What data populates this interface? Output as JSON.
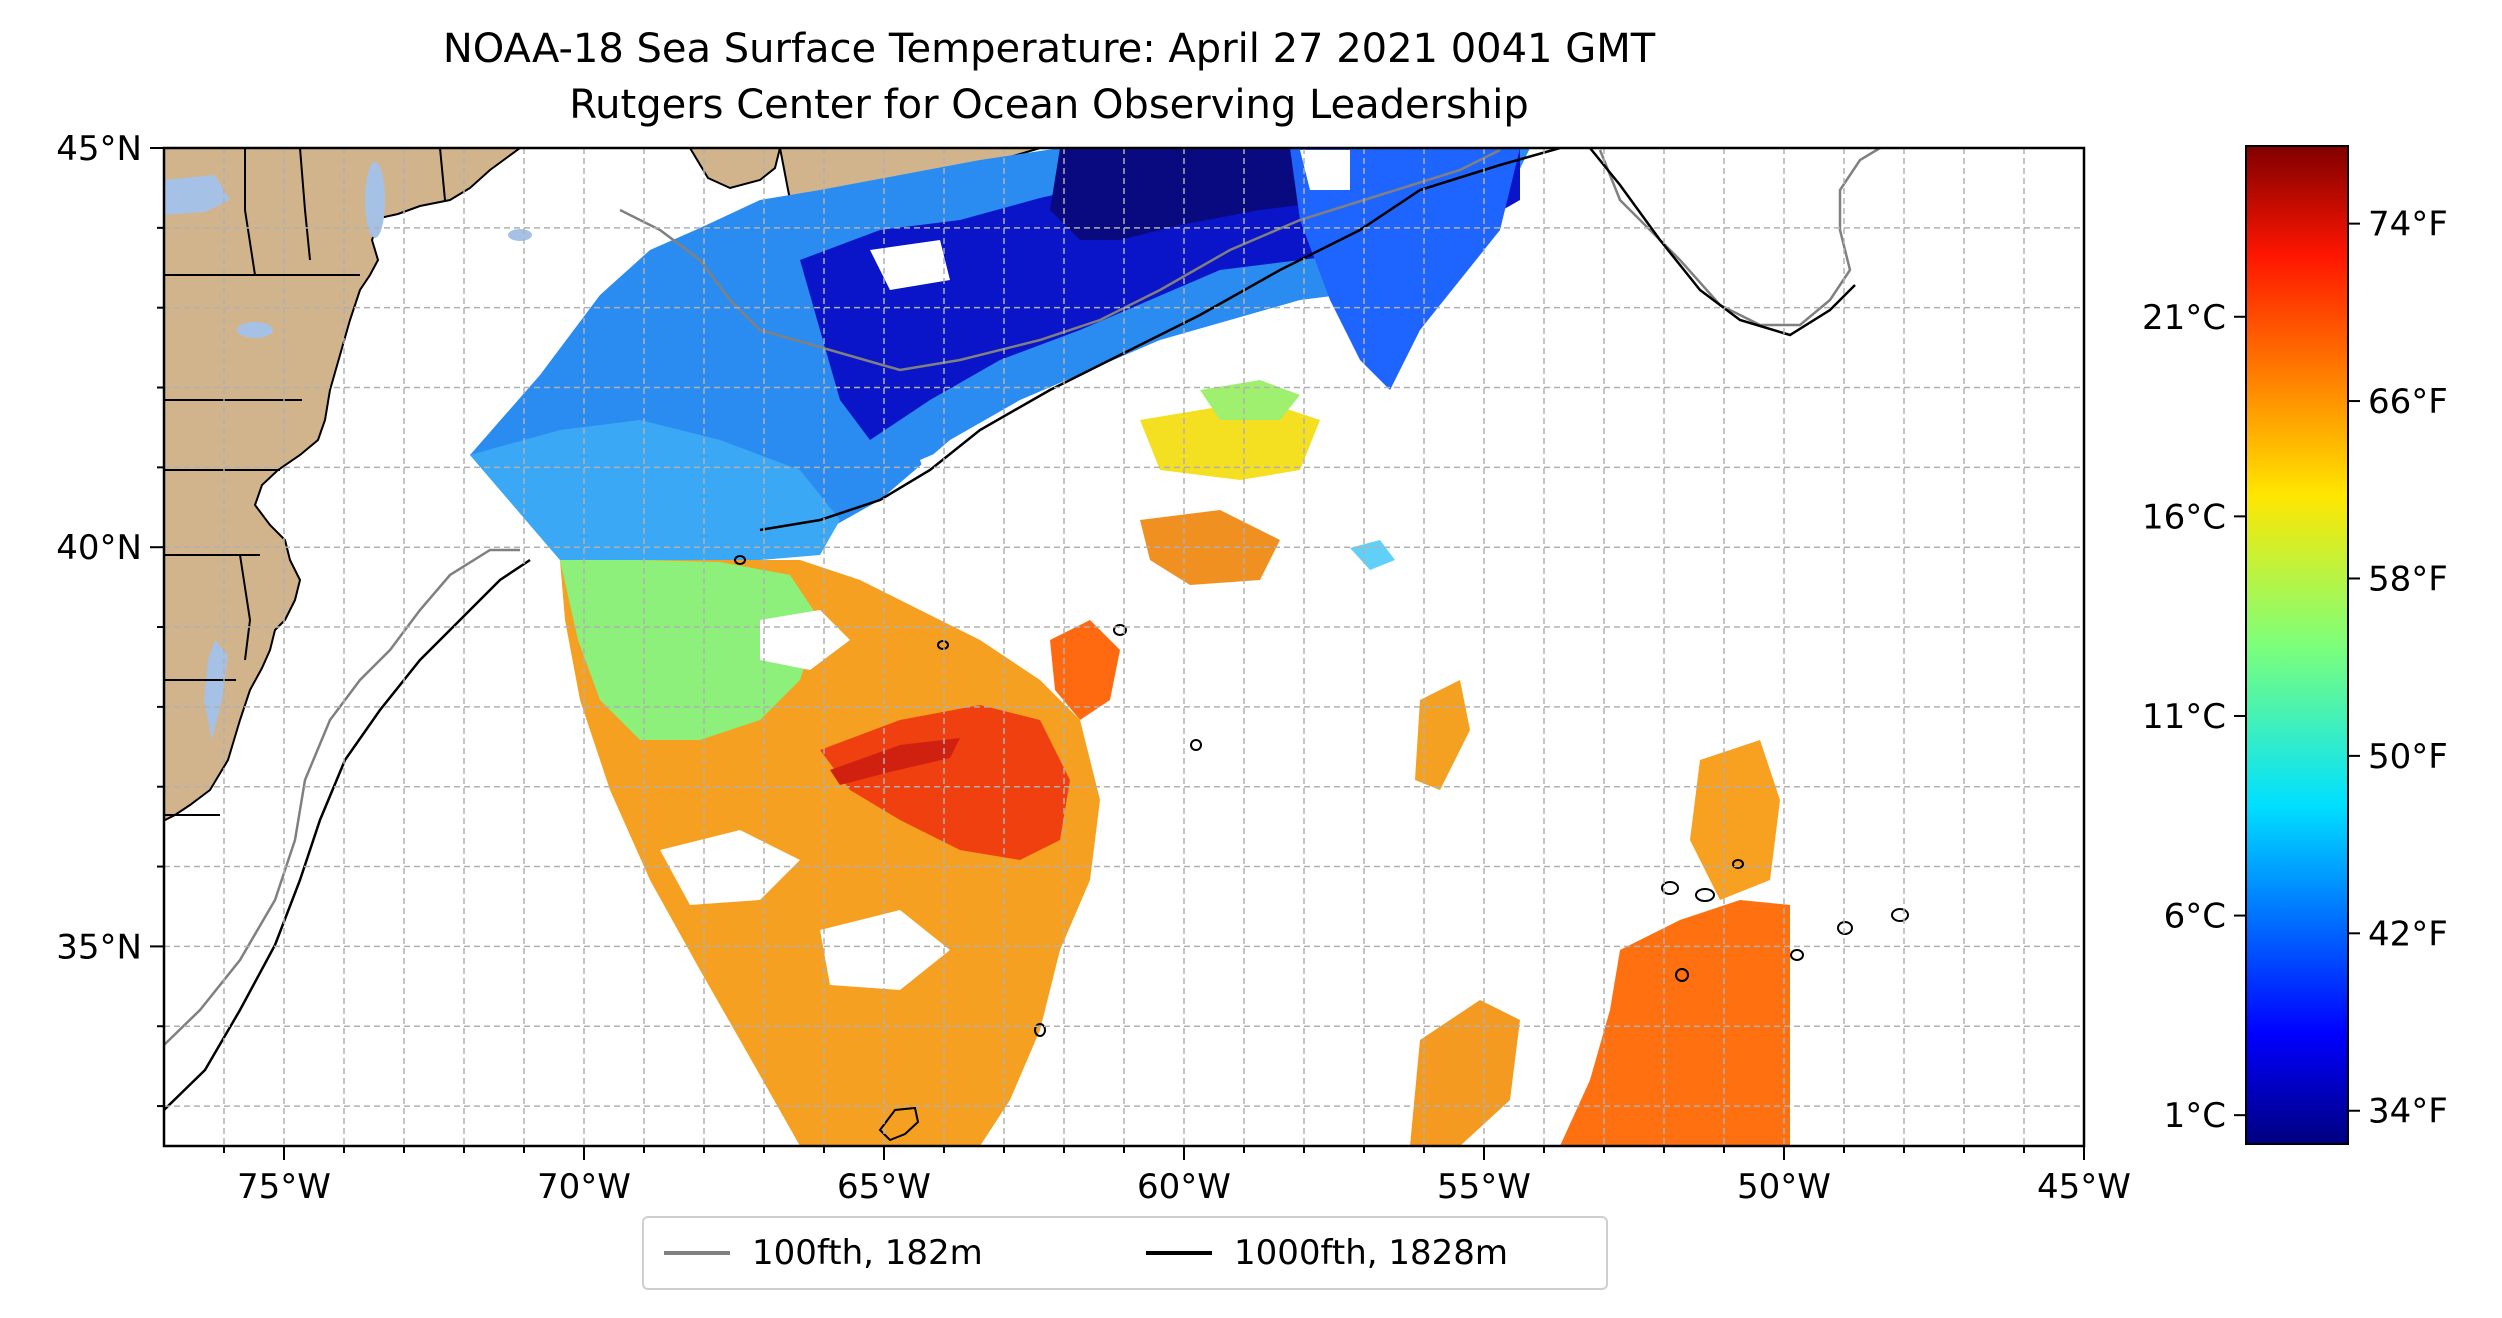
{
  "title": {
    "line1": "NOAA-18 Sea Surface Temperature: April 27 2021 0041 GMT",
    "line2": "Rutgers Center for Ocean Observing Leadership"
  },
  "axes": {
    "x_tick_labels": [
      "75°W",
      "70°W",
      "65°W",
      "60°W",
      "55°W",
      "50°W",
      "45°W"
    ],
    "y_tick_labels": [
      "45°N",
      "40°N",
      "35°N"
    ],
    "lon_range": [
      -77,
      -45
    ],
    "lat_range": [
      32.5,
      45
    ],
    "grid": "dashed, every 1°"
  },
  "legend": {
    "items": [
      {
        "label": "100fth, 182m",
        "color": "#808080"
      },
      {
        "label": "1000fth, 1828m",
        "color": "#000000"
      }
    ],
    "placement": "bottom-center"
  },
  "colorbar": {
    "colormap": "jet",
    "celsius_labels": [
      "21°C",
      "16°C",
      "11°C",
      "6°C",
      "1°C"
    ],
    "fahrenheit_labels": [
      "74°F",
      "66°F",
      "58°F",
      "50°F",
      "42°F",
      "34°F"
    ],
    "range_f": [
      32.5,
      77.5
    ]
  },
  "colors": {
    "land": "#d2b48c",
    "lakes": "#a6c1e6",
    "ocean_background": "#ffffff",
    "isobath_100fth": "#808080",
    "isobath_1000fth": "#000000"
  }
}
